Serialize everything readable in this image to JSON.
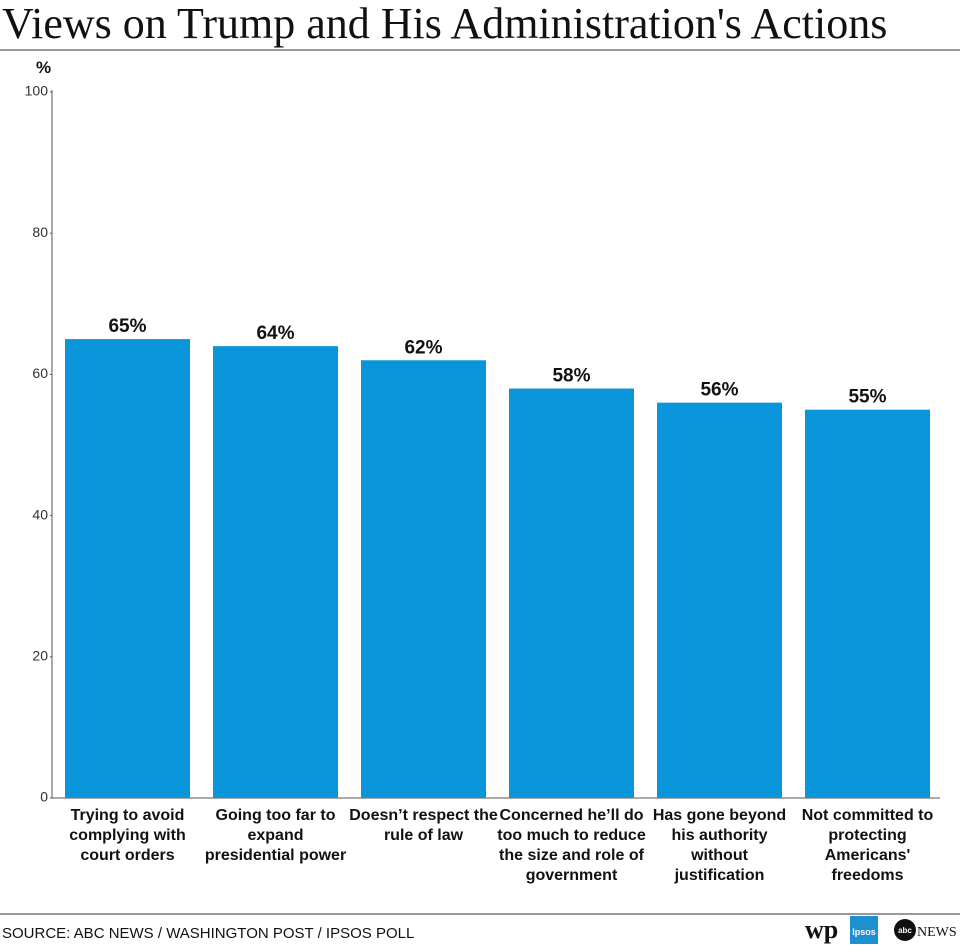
{
  "chart_data": {
    "type": "bar",
    "title": "Views on Trump and His Administration's Actions",
    "y_label": "%",
    "categories": [
      "Trying to avoid complying with court orders",
      "Going too far to expand presidential power",
      "Doesn’t respect the rule of law",
      "Concerned he’ll do too much to reduce the size and role of government",
      "Has gone beyond his authority without justification",
      "Not committed to protecting Americans' freedoms"
    ],
    "values": [
      65,
      64,
      62,
      58,
      56,
      55
    ],
    "value_labels": [
      "65%",
      "64%",
      "62%",
      "58%",
      "56%",
      "55%"
    ],
    "color": "#0a95db",
    "ylim": [
      0,
      100
    ],
    "yticks": [
      0,
      20,
      40,
      60,
      80,
      100
    ],
    "grid": false,
    "source": "SOURCE: ABC NEWS / WASHINGTON POST / IPSOS POLL",
    "logos": [
      "wp",
      "Ipsos",
      "abc",
      "NEWS"
    ]
  }
}
